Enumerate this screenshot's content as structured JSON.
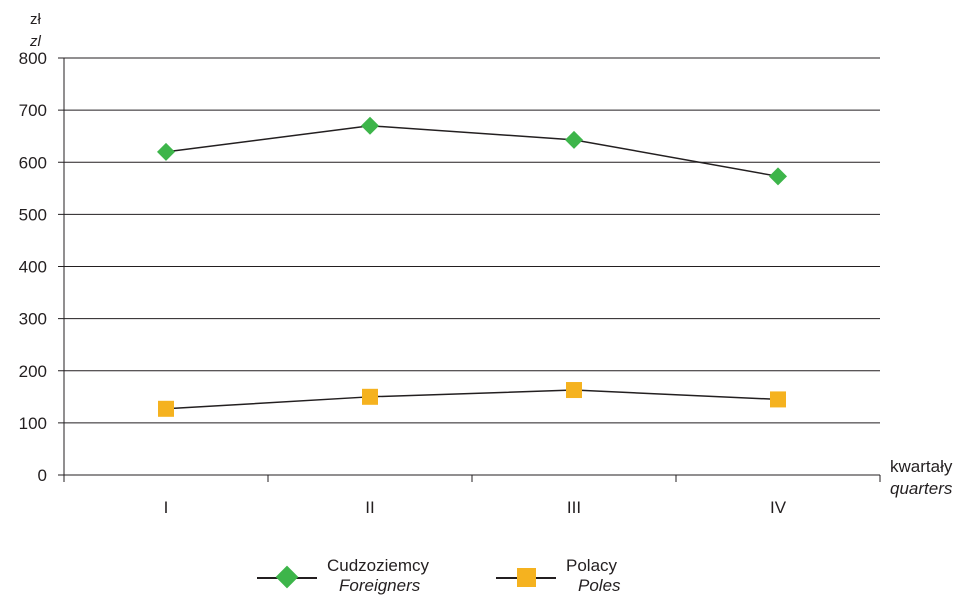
{
  "chart_data": {
    "type": "line",
    "unit_label": "zł",
    "unit_label_en": "zl",
    "xlabel": "kwartały",
    "xlabel_en": "quarters",
    "categories": [
      "I",
      "II",
      "III",
      "IV"
    ],
    "y_ticks": [
      "0",
      "100",
      "200",
      "300",
      "400",
      "500",
      "600",
      "700",
      "800"
    ],
    "ylim": [
      0,
      800
    ],
    "grid": true,
    "legend_position": "bottom",
    "series": [
      {
        "name": "Cudzoziemcy",
        "name_en": "Foreigners",
        "values": [
          620,
          670,
          643,
          573
        ],
        "marker": "diamond",
        "color": "#3db54a"
      },
      {
        "name": "Polacy",
        "name_en": "Poles",
        "values": [
          127,
          150,
          163,
          145
        ],
        "marker": "square",
        "color": "#f5b21f"
      }
    ],
    "line_color": "#231f20",
    "grid_color": "#231f20"
  }
}
